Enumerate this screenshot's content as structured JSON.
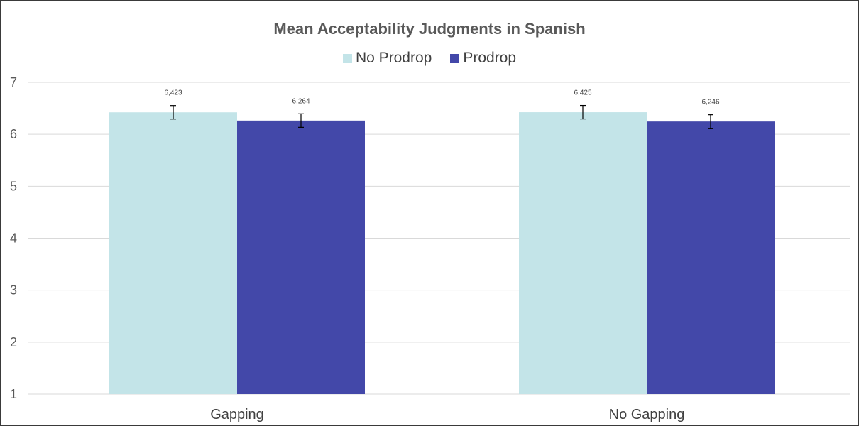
{
  "chart_data": {
    "type": "bar",
    "title": "Mean Acceptability Judgments in Spanish",
    "categories": [
      "Gapping",
      "No Gapping"
    ],
    "series": [
      {
        "name": "No Prodrop",
        "values": [
          6.423,
          6.425
        ],
        "labels": [
          "6,423",
          "6,425"
        ],
        "error": [
          0.13,
          0.13
        ],
        "color": "#c3e4e8"
      },
      {
        "name": "Prodrop",
        "values": [
          6.264,
          6.246
        ],
        "labels": [
          "6,264",
          "6,246"
        ],
        "error": [
          0.13,
          0.13
        ],
        "color": "#4348a9"
      }
    ],
    "ylim": [
      1,
      7
    ],
    "yticks": [
      "1",
      "2",
      "3",
      "4",
      "5",
      "6",
      "7"
    ],
    "grid": true,
    "legend_position": "top"
  }
}
